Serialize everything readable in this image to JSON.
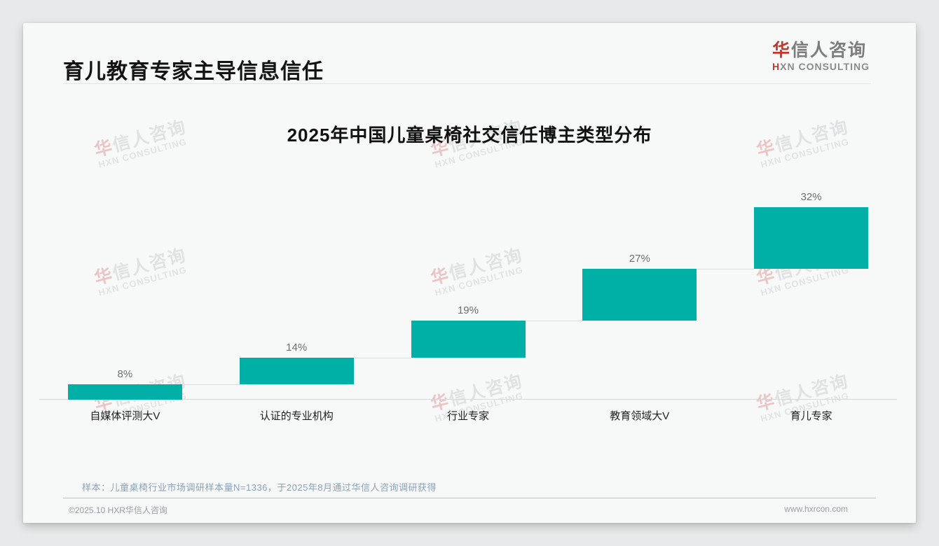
{
  "theme": {
    "bar_color": "#00AFA6",
    "accent_red": "#C2382C",
    "footnote_color": "#8BA3B8"
  },
  "header": {
    "title": "育儿教育专家主导信息信任",
    "logo": {
      "zh_accent": "华",
      "zh_rest": "信人咨询",
      "en_accent": "H",
      "en_rest": "XN CONSULTING"
    }
  },
  "watermark": {
    "zh_accent": "华",
    "zh_rest": "信人咨询",
    "en": "HXN CONSULTING"
  },
  "chart_data": {
    "type": "bar",
    "variant": "waterfall-steps",
    "title": "2025年中国儿童桌椅社交信任博主类型分布",
    "categories": [
      "自媒体评测大V",
      "认证的专业机构",
      "行业专家",
      "教育领域大V",
      "育儿专家"
    ],
    "values": [
      8,
      14,
      19,
      27,
      32
    ],
    "value_labels": [
      "8%",
      "14%",
      "19%",
      "27%",
      "32%"
    ],
    "unit": "%",
    "ylim": [
      0,
      100
    ],
    "grid": false,
    "legend_position": "none",
    "bar_color": "#00AFA6"
  },
  "footnote": "样本：儿童桌椅行业市场调研样本量N=1336，于2025年8月通过华信人咨询调研获得",
  "footer": {
    "copyright": "©2025.10 HXR华信人咨询",
    "website": "www.hxrcon.com"
  }
}
